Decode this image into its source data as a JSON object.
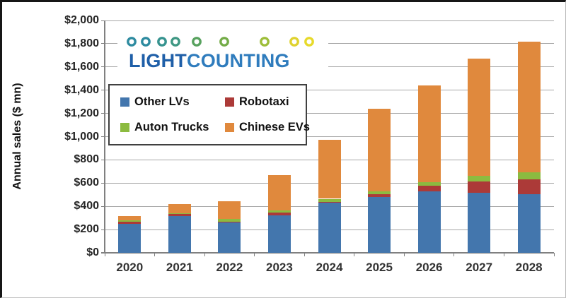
{
  "chart_data": {
    "type": "bar",
    "stacked": true,
    "title": "",
    "xlabel": "",
    "ylabel": "Annual sales ($ mn)",
    "ylim": [
      0,
      2000
    ],
    "ytick_step": 200,
    "ytick_labels": [
      "$0",
      "$200",
      "$400",
      "$600",
      "$800",
      "$1,000",
      "$1,200",
      "$1,400",
      "$1,600",
      "$1,800",
      "$2,000"
    ],
    "categories": [
      "2020",
      "2021",
      "2022",
      "2023",
      "2024",
      "2025",
      "2026",
      "2027",
      "2028"
    ],
    "series": [
      {
        "name": "Other LVs",
        "color": "#4376AD",
        "values": [
          250,
          315,
          265,
          325,
          435,
          480,
          530,
          515,
          505
        ]
      },
      {
        "name": "Robotaxi",
        "color": "#AC3A38",
        "values": [
          15,
          20,
          5,
          20,
          5,
          25,
          45,
          100,
          130
        ]
      },
      {
        "name": "Auton Trucks",
        "color": "#8CBB40",
        "values": [
          15,
          5,
          20,
          20,
          25,
          25,
          35,
          50,
          55
        ]
      },
      {
        "name": "Chinese EVs",
        "color": "#E0893D",
        "values": [
          35,
          80,
          155,
          305,
          505,
          710,
          830,
          1005,
          1130
        ]
      }
    ],
    "totals": [
      315,
      420,
      445,
      670,
      970,
      1240,
      1440,
      1670,
      1820
    ],
    "grid": true,
    "gridline_color": "#a6a6a6",
    "legend_position": "upper-left-inside"
  },
  "legend": {
    "order": [
      "Other LVs",
      "Robotaxi",
      "Auton Trucks",
      "Chinese EVs"
    ]
  },
  "logo": {
    "text_primary": "LIGHT",
    "text_secondary": "COUNTING",
    "color_primary": "#1F5FA8",
    "color_secondary": "#2F7CBD",
    "chain_circle_colors": [
      "#2E8BA0",
      "#2E8BA0",
      "#36938F",
      "#3F9884",
      "#58A25F",
      "#74AC48",
      "#9EBE3A",
      "#DFD22F",
      "#E7DA2B"
    ],
    "chain_line_colors": [
      "#2E8BA0",
      "#74AC48",
      "#E7DA2B"
    ]
  }
}
